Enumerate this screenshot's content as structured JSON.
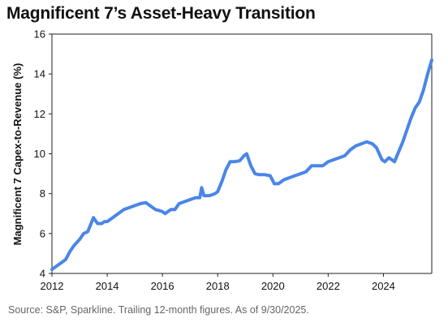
{
  "title": "Magnificent 7’s Asset-Heavy Transition",
  "source": "Source: S&P, Sparkline. Trailing 12-month figures. As of 9/30/2025.",
  "colors": {
    "line": "#4a86e8",
    "axis": "#222222",
    "text": "#111111",
    "source": "#666666"
  },
  "chart_data": {
    "type": "line",
    "title": "Magnificent 7’s Asset-Heavy Transition",
    "xlabel": "",
    "ylabel": "Magnificent 7 Capex-to-Revenue (%)",
    "xlim": [
      2012,
      2025.75
    ],
    "ylim": [
      4,
      16
    ],
    "x_ticks": [
      "2012",
      "2014",
      "2016",
      "2018",
      "2020",
      "2022",
      "2024"
    ],
    "y_ticks": [
      "4",
      "6",
      "8",
      "10",
      "12",
      "14",
      "16"
    ],
    "grid": false,
    "legend": "none",
    "series": [
      {
        "x": [
          2012.0,
          2012.15,
          2012.3,
          2012.5,
          2012.65,
          2012.8,
          2013.0,
          2013.15,
          2013.3,
          2013.5,
          2013.65,
          2013.8,
          2013.9,
          2014.0,
          2014.2,
          2014.4,
          2014.6,
          2014.8,
          2015.0,
          2015.2,
          2015.4,
          2015.55,
          2015.75,
          2015.9,
          2016.0,
          2016.1,
          2016.3,
          2016.45,
          2016.6,
          2016.8,
          2017.0,
          2017.2,
          2017.35,
          2017.42,
          2017.5,
          2017.7,
          2017.9,
          2018.0,
          2018.15,
          2018.3,
          2018.45,
          2018.6,
          2018.8,
          2018.95,
          2019.05,
          2019.2,
          2019.35,
          2019.5,
          2019.7,
          2019.9,
          2020.05,
          2020.2,
          2020.4,
          2020.6,
          2020.8,
          2021.0,
          2021.2,
          2021.4,
          2021.6,
          2021.8,
          2022.0,
          2022.2,
          2022.4,
          2022.6,
          2022.8,
          2023.0,
          2023.2,
          2023.4,
          2023.6,
          2023.75,
          2023.85,
          2023.95,
          2024.05,
          2024.2,
          2024.4,
          2024.55,
          2024.7,
          2024.85,
          2025.0,
          2025.15,
          2025.3,
          2025.45,
          2025.6,
          2025.75
        ],
        "values": [
          4.2,
          4.35,
          4.5,
          4.7,
          5.1,
          5.4,
          5.7,
          6.0,
          6.1,
          6.8,
          6.5,
          6.5,
          6.6,
          6.6,
          6.8,
          7.0,
          7.2,
          7.3,
          7.4,
          7.5,
          7.55,
          7.4,
          7.2,
          7.15,
          7.1,
          7.0,
          7.2,
          7.2,
          7.5,
          7.6,
          7.7,
          7.8,
          7.8,
          8.3,
          7.9,
          7.9,
          8.0,
          8.1,
          8.6,
          9.2,
          9.6,
          9.6,
          9.65,
          9.9,
          10.0,
          9.4,
          9.0,
          8.95,
          8.95,
          8.9,
          8.5,
          8.5,
          8.7,
          8.8,
          8.9,
          9.0,
          9.1,
          9.4,
          9.4,
          9.4,
          9.6,
          9.7,
          9.8,
          9.9,
          10.2,
          10.4,
          10.5,
          10.6,
          10.5,
          10.3,
          10.0,
          9.7,
          9.6,
          9.8,
          9.6,
          10.1,
          10.6,
          11.2,
          11.8,
          12.3,
          12.6,
          13.2,
          14.0,
          14.7
        ]
      }
    ]
  }
}
